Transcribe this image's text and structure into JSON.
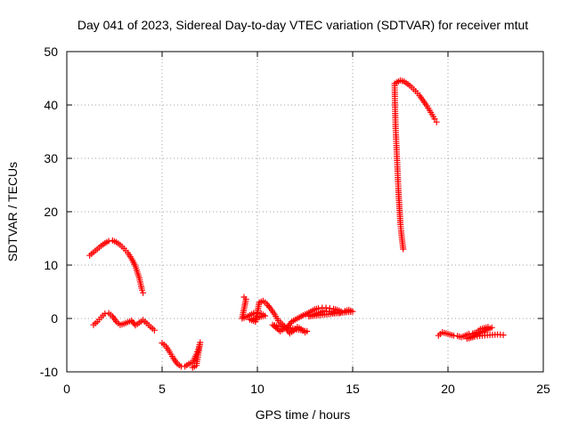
{
  "chart_data": {
    "type": "scatter",
    "title": "Day 041 of 2023, Sidereal Day-to-day VTEC variation (SDTVAR) for receiver mtut",
    "xlabel": "GPS time / hours",
    "ylabel": "SDTVAR / TECUs",
    "xlim": [
      0,
      25
    ],
    "ylim": [
      -10,
      50
    ],
    "xticks": [
      "0",
      "5",
      "10",
      "15",
      "20",
      "25"
    ],
    "yticks": [
      "-10",
      "0",
      "10",
      "20",
      "30",
      "40",
      "50"
    ],
    "grid": true,
    "marker": "+",
    "series_color": "#ff0000",
    "segments": [
      {
        "name": "arc-1-upper",
        "points": [
          [
            1.2,
            11.8
          ],
          [
            1.4,
            12.4
          ],
          [
            1.6,
            13.0
          ],
          [
            1.8,
            13.6
          ],
          [
            2.0,
            14.1
          ],
          [
            2.2,
            14.5
          ],
          [
            2.4,
            14.6
          ],
          [
            2.6,
            14.3
          ],
          [
            2.8,
            13.8
          ],
          [
            3.0,
            13.1
          ],
          [
            3.2,
            12.3
          ],
          [
            3.4,
            11.2
          ],
          [
            3.6,
            9.8
          ],
          [
            3.8,
            7.6
          ],
          [
            3.95,
            5.3
          ],
          [
            4.0,
            4.8
          ]
        ]
      },
      {
        "name": "arc-2-lower",
        "points": [
          [
            1.4,
            -1.2
          ],
          [
            1.6,
            -0.6
          ],
          [
            1.8,
            0.2
          ],
          [
            2.0,
            0.9
          ],
          [
            2.2,
            1.0
          ],
          [
            2.4,
            0.4
          ],
          [
            2.6,
            -0.6
          ],
          [
            2.8,
            -1.2
          ],
          [
            3.0,
            -1.0
          ],
          [
            3.2,
            -0.7
          ],
          [
            3.4,
            -0.4
          ],
          [
            3.6,
            -1.3
          ],
          [
            3.8,
            -0.8
          ],
          [
            4.0,
            -0.3
          ],
          [
            4.2,
            -0.9
          ],
          [
            4.4,
            -1.6
          ],
          [
            4.6,
            -2.2
          ]
        ]
      },
      {
        "name": "arc-3",
        "points": [
          [
            5.0,
            -4.6
          ],
          [
            5.2,
            -5.2
          ],
          [
            5.4,
            -6.3
          ],
          [
            5.6,
            -7.5
          ],
          [
            5.8,
            -8.5
          ],
          [
            6.0,
            -9.0
          ],
          [
            6.2,
            -9.0
          ],
          [
            6.4,
            -8.5
          ],
          [
            6.6,
            -8.2
          ],
          [
            6.8,
            -6.7
          ],
          [
            6.9,
            -5.8
          ],
          [
            7.0,
            -4.5
          ],
          [
            6.8,
            -8.8
          ],
          [
            6.6,
            -9.2
          ]
        ]
      },
      {
        "name": "arc-4",
        "points": [
          [
            9.3,
            4.0
          ],
          [
            9.4,
            3.6
          ],
          [
            9.2,
            0.0
          ],
          [
            9.5,
            0.4
          ],
          [
            9.8,
            1.0
          ],
          [
            10.0,
            1.0
          ],
          [
            10.2,
            0.9
          ],
          [
            10.4,
            0.5
          ],
          [
            9.6,
            -0.2
          ],
          [
            9.9,
            -0.6
          ],
          [
            10.1,
            3.0
          ],
          [
            10.3,
            3.3
          ],
          [
            10.5,
            2.7
          ],
          [
            10.7,
            1.8
          ],
          [
            10.9,
            0.8
          ],
          [
            11.1,
            -0.4
          ],
          [
            11.3,
            -1.0
          ],
          [
            11.5,
            -1.8
          ],
          [
            11.7,
            -2.8
          ],
          [
            11.9,
            -2.3
          ],
          [
            12.1,
            -1.6
          ],
          [
            12.3,
            -2.0
          ],
          [
            12.5,
            -2.6
          ],
          [
            12.6,
            -2.4
          ],
          [
            10.8,
            -1.2
          ],
          [
            11.2,
            -2.4
          ],
          [
            11.6,
            -1.5
          ],
          [
            11.8,
            -0.6
          ],
          [
            12.0,
            -0.2
          ],
          [
            12.2,
            0.2
          ],
          [
            12.4,
            0.6
          ],
          [
            12.6,
            0.9
          ],
          [
            12.8,
            1.3
          ],
          [
            13.0,
            1.7
          ],
          [
            13.2,
            1.9
          ],
          [
            13.4,
            2.0
          ],
          [
            13.6,
            2.0
          ],
          [
            13.8,
            1.9
          ],
          [
            14.0,
            1.8
          ],
          [
            14.2,
            1.6
          ],
          [
            14.4,
            1.3
          ],
          [
            14.6,
            1.4
          ],
          [
            14.8,
            1.6
          ],
          [
            15.0,
            1.3
          ],
          [
            12.7,
            0.4
          ],
          [
            13.1,
            0.9
          ],
          [
            13.5,
            1.4
          ],
          [
            13.9,
            1.2
          ],
          [
            14.3,
            1.0
          ]
        ]
      },
      {
        "name": "arc-5-steep",
        "points": [
          [
            17.2,
            44.0
          ],
          [
            17.22,
            40.0
          ],
          [
            17.25,
            36.0
          ],
          [
            17.3,
            32.0
          ],
          [
            17.35,
            28.0
          ],
          [
            17.4,
            24.0
          ],
          [
            17.45,
            21.0
          ],
          [
            17.5,
            18.0
          ],
          [
            17.55,
            16.0
          ],
          [
            17.6,
            14.5
          ],
          [
            17.65,
            13.0
          ]
        ]
      },
      {
        "name": "arc-6-upper",
        "points": [
          [
            17.3,
            44.2
          ],
          [
            17.5,
            44.6
          ],
          [
            17.7,
            44.4
          ],
          [
            17.9,
            43.9
          ],
          [
            18.1,
            43.3
          ],
          [
            18.3,
            42.6
          ],
          [
            18.5,
            41.8
          ],
          [
            18.7,
            40.8
          ],
          [
            18.9,
            39.8
          ],
          [
            19.1,
            38.6
          ],
          [
            19.3,
            37.4
          ],
          [
            19.4,
            36.8
          ]
        ]
      },
      {
        "name": "arc-7",
        "points": [
          [
            19.5,
            -3.2
          ],
          [
            19.7,
            -2.6
          ],
          [
            19.9,
            -2.8
          ],
          [
            20.1,
            -3.0
          ],
          [
            20.3,
            -3.2
          ],
          [
            20.5,
            -3.3
          ],
          [
            20.7,
            -3.5
          ],
          [
            20.9,
            -3.2
          ],
          [
            21.1,
            -2.9
          ],
          [
            21.3,
            -2.8
          ],
          [
            21.5,
            -2.6
          ],
          [
            21.7,
            -2.0
          ],
          [
            21.9,
            -1.8
          ],
          [
            22.1,
            -1.6
          ],
          [
            22.3,
            -1.7
          ],
          [
            21.0,
            -3.8
          ],
          [
            21.4,
            -3.4
          ],
          [
            21.8,
            -3.2
          ],
          [
            22.2,
            -3.1
          ],
          [
            22.6,
            -3.0
          ],
          [
            22.9,
            -3.1
          ]
        ]
      }
    ]
  }
}
